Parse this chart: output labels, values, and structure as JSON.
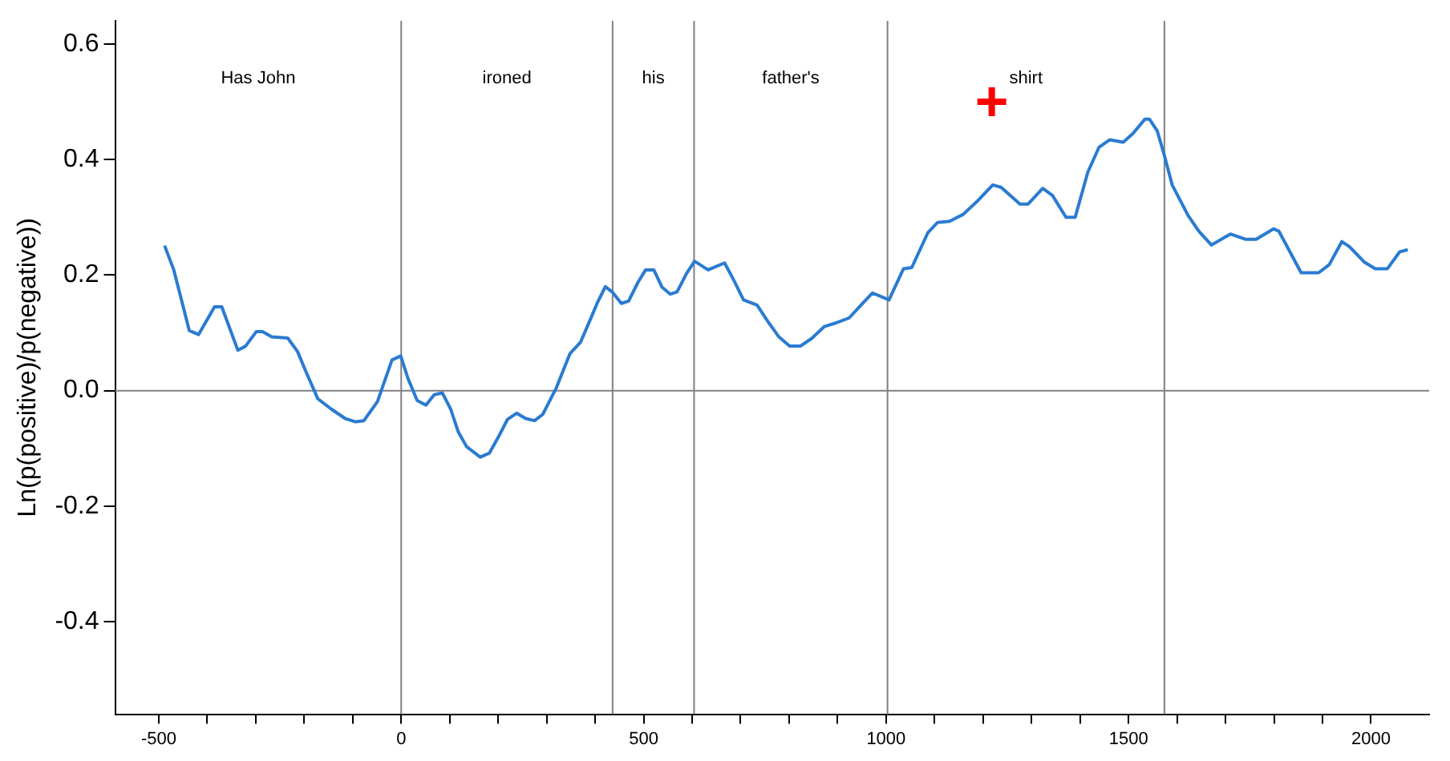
{
  "chart_data": {
    "type": "line",
    "ylabel": "Ln(p(positive)/p(negative))",
    "xlim": [
      -590,
      2120
    ],
    "ylim": [
      -0.56,
      0.64
    ],
    "xticks": [
      -500,
      {
        "value": -400,
        "label": null
      },
      {
        "value": -300,
        "label": null
      },
      {
        "value": -200,
        "label": null
      },
      {
        "value": -100,
        "label": null
      },
      0,
      {
        "value": 100,
        "label": null
      },
      {
        "value": 200,
        "label": null
      },
      {
        "value": 300,
        "label": null
      },
      {
        "value": 400,
        "label": null
      },
      500,
      {
        "value": 600,
        "label": null
      },
      {
        "value": 700,
        "label": null
      },
      {
        "value": 800,
        "label": null
      },
      {
        "value": 900,
        "label": null
      },
      1000,
      {
        "value": 1100,
        "label": null
      },
      {
        "value": 1200,
        "label": null
      },
      {
        "value": 1300,
        "label": null
      },
      {
        "value": 1400,
        "label": null
      },
      1500,
      {
        "value": 1600,
        "label": null
      },
      {
        "value": 1700,
        "label": null
      },
      {
        "value": 1800,
        "label": null
      },
      {
        "value": 1900,
        "label": null
      },
      2000
    ],
    "yticks": [
      -0.4,
      -0.2,
      {
        "value": 0,
        "label": "0.0"
      },
      0.2,
      0.4,
      0.6
    ],
    "grid": false,
    "legend": false,
    "marker": "none",
    "line_style": "solid",
    "series": [
      {
        "color": "#2a7bd1",
        "x": [
          -488,
          -469,
          -437,
          -418,
          -385,
          -370,
          -337,
          -321,
          -299,
          -286,
          -267,
          -234,
          -214,
          -195,
          -172,
          -144,
          -116,
          -94,
          -77,
          -49,
          -19,
          -1,
          14,
          33,
          51,
          68,
          85,
          102,
          118,
          135,
          163,
          182,
          200,
          219,
          238,
          256,
          275,
          292,
          320,
          348,
          370,
          393,
          404,
          421,
          435,
          454,
          469,
          488,
          504,
          521,
          538,
          555,
          569,
          588,
          605,
          633,
          667,
          686,
          706,
          734,
          756,
          779,
          801,
          823,
          846,
          873,
          896,
          924,
          946,
          972,
          1006,
          1036,
          1053,
          1086,
          1106,
          1131,
          1159,
          1187,
          1220,
          1237,
          1276,
          1293,
          1323,
          1343,
          1371,
          1390,
          1416,
          1439,
          1461,
          1489,
          1509,
          1534,
          1543,
          1559,
          1573,
          1590,
          1623,
          1645,
          1671,
          1710,
          1741,
          1763,
          1799,
          1810,
          1856,
          1892,
          1914,
          1940,
          1956,
          1987,
          2009,
          2034,
          2059,
          2076
        ],
        "values": [
          0.251,
          0.209,
          0.104,
          0.097,
          0.145,
          0.145,
          0.07,
          0.077,
          0.102,
          0.102,
          0.093,
          0.091,
          0.068,
          0.03,
          -0.014,
          -0.032,
          -0.048,
          -0.054,
          -0.052,
          -0.019,
          0.053,
          0.06,
          0.021,
          -0.017,
          -0.025,
          -0.007,
          -0.004,
          -0.032,
          -0.072,
          -0.097,
          -0.115,
          -0.108,
          -0.081,
          -0.05,
          -0.039,
          -0.048,
          -0.052,
          -0.041,
          0.005,
          0.064,
          0.084,
          0.129,
          0.151,
          0.18,
          0.171,
          0.151,
          0.155,
          0.187,
          0.209,
          0.209,
          0.179,
          0.167,
          0.171,
          0.202,
          0.224,
          0.209,
          0.221,
          0.191,
          0.157,
          0.148,
          0.12,
          0.093,
          0.077,
          0.077,
          0.09,
          0.111,
          0.117,
          0.126,
          0.146,
          0.169,
          0.157,
          0.211,
          0.213,
          0.273,
          0.291,
          0.293,
          0.305,
          0.327,
          0.356,
          0.352,
          0.323,
          0.323,
          0.35,
          0.338,
          0.3,
          0.3,
          0.378,
          0.421,
          0.434,
          0.43,
          0.445,
          0.47,
          0.47,
          0.45,
          0.41,
          0.356,
          0.303,
          0.276,
          0.252,
          0.271,
          0.262,
          0.262,
          0.28,
          0.276,
          0.204,
          0.204,
          0.218,
          0.258,
          0.249,
          0.222,
          0.211,
          0.211,
          0.24,
          0.244
        ]
      },
      {
        "type": "scatter",
        "color": "#ff0000",
        "marker": "cross",
        "x": [
          1218
        ],
        "values": [
          0.5
        ]
      }
    ],
    "ref_lines": [
      {
        "axis": "y",
        "value": 0,
        "color": "#808080"
      },
      {
        "axis": "x",
        "value": 0,
        "color": "#808080"
      },
      {
        "axis": "x",
        "value": 436,
        "color": "#808080"
      },
      {
        "axis": "x",
        "value": 604,
        "color": "#808080"
      },
      {
        "axis": "x",
        "value": 1003,
        "color": "#808080"
      },
      {
        "axis": "x",
        "value": 1574,
        "color": "#808080"
      }
    ],
    "annotations": [
      "Has John",
      "ironed",
      "his",
      "father's",
      "shirt"
    ]
  }
}
